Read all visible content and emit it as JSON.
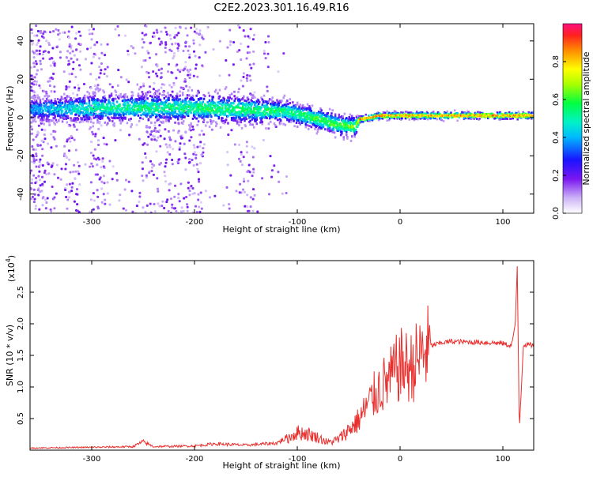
{
  "title": "C2E2.2023.301.16.49.R16",
  "colors": {
    "snr_line": "#e8302e",
    "background": "#ffffff",
    "axis": "#000000"
  },
  "chart_data": [
    {
      "type": "heatmap",
      "panel": "top",
      "xlabel": "Height of straight line (km)",
      "ylabel": "Frequency (Hz)",
      "xlim": [
        -360,
        130
      ],
      "ylim": [
        -50,
        49
      ],
      "xticks": [
        -300,
        -200,
        -100,
        0,
        100
      ],
      "xtick_labels": [
        "-300",
        "-200",
        "-100",
        "0",
        "100"
      ],
      "yticks": [
        -40,
        -20,
        0,
        20,
        40
      ],
      "ytick_labels": [
        "-40",
        "-20",
        "0",
        "20",
        "40"
      ],
      "colorbar": {
        "label": "Normalized spectral amplitude",
        "range": [
          0,
          1
        ],
        "ticks": [
          0.0,
          0.2,
          0.4,
          0.6,
          0.8
        ],
        "tick_labels": [
          "0.0",
          "0.2",
          "0.4",
          "0.6",
          "0.8"
        ]
      },
      "ridge": {
        "description_x": [
          -360,
          -300,
          -200,
          -150,
          -110,
          -80,
          -60,
          -45,
          -40,
          -20,
          0,
          50,
          100,
          130
        ],
        "center_hz": [
          4,
          5,
          5,
          4,
          3,
          -1,
          -4,
          -5,
          -1,
          1,
          1,
          1,
          1,
          1
        ],
        "half_width_hz": [
          3,
          4,
          4,
          4,
          3,
          3,
          3,
          3,
          1,
          1,
          1,
          1,
          1,
          1
        ],
        "peak_amplitude": [
          0.4,
          0.5,
          0.55,
          0.55,
          0.55,
          0.6,
          0.6,
          0.65,
          0.85,
          0.85,
          0.85,
          0.85,
          0.85,
          0.85
        ]
      },
      "noise_columns_km": [
        -360,
        -345,
        -320,
        -295,
        -245,
        -230,
        -215,
        -200,
        -150
      ]
    },
    {
      "type": "line",
      "panel": "bottom",
      "xlabel": "Height of straight line (km)",
      "ylabel": "SNR (10 * v/v)",
      "y_multiplier_label": "(x10",
      "y_multiplier_exp": "4",
      "xlim": [
        -360,
        130
      ],
      "ylim": [
        0,
        30000
      ],
      "xticks": [
        -300,
        -200,
        -100,
        0,
        100
      ],
      "xtick_labels": [
        "-300",
        "-200",
        "-100",
        "0",
        "100"
      ],
      "yticks": [
        5000,
        10000,
        15000,
        20000,
        25000
      ],
      "ytick_labels": [
        "0.5",
        "1.0",
        "1.5",
        "2.0",
        "2.5"
      ],
      "series": [
        {
          "name": "SNR",
          "x": [
            -360,
            -300,
            -260,
            -250,
            -240,
            -200,
            -180,
            -150,
            -120,
            -110,
            -100,
            -90,
            -80,
            -70,
            -60,
            -50,
            -40,
            -30,
            -20,
            -10,
            0,
            10,
            20,
            30,
            40,
            50,
            70,
            90,
            100,
            108,
            112,
            114,
            116,
            120,
            130
          ],
          "y": [
            300,
            400,
            500,
            1200,
            500,
            600,
            900,
            700,
            1000,
            1800,
            2800,
            2600,
            2000,
            1200,
            1700,
            3200,
            4800,
            7500,
            9800,
            11200,
            13500,
            13000,
            15000,
            16500,
            17000,
            17200,
            17100,
            17000,
            16900,
            16500,
            19500,
            29000,
            3200,
            16700,
            16600
          ]
        }
      ]
    }
  ]
}
